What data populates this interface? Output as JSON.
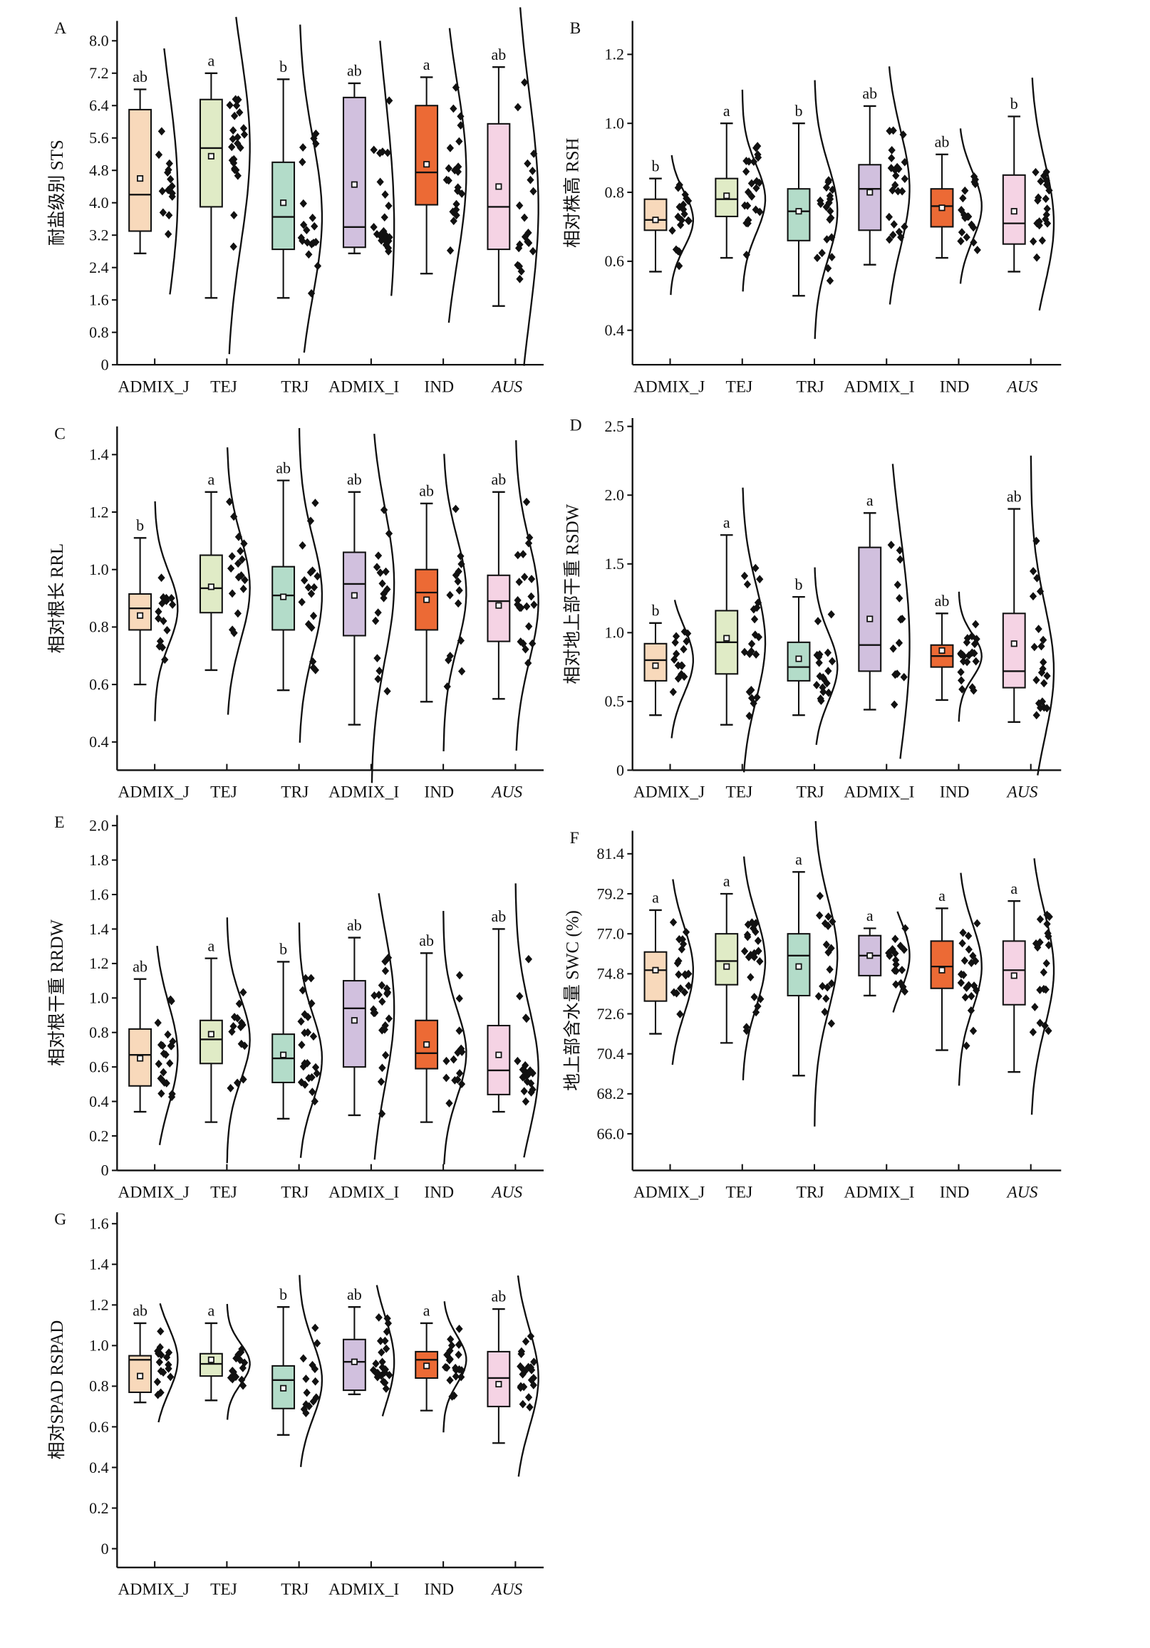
{
  "chart_data": [
    {
      "type": "box",
      "panel": "A",
      "ylabel": "耐盐级别 STS",
      "ylim": [
        0,
        8.4
      ],
      "yticks": [
        "0",
        "0.8",
        "1.6",
        "2.4",
        "3.2",
        "4.0",
        "4.8",
        "5.6",
        "6.4",
        "7.2",
        "8.0"
      ],
      "categories": [
        "ADMIX_J",
        "TEJ",
        "TRJ",
        "ADMIX_I",
        "IND",
        "AUS"
      ],
      "boxes": [
        {
          "min": 2.75,
          "q1": 3.3,
          "median": 4.2,
          "q3": 6.3,
          "max": 6.8,
          "mean": 4.6,
          "letter": "ab"
        },
        {
          "min": 1.65,
          "q1": 3.9,
          "median": 5.35,
          "q3": 6.55,
          "max": 7.2,
          "mean": 5.15,
          "letter": "a"
        },
        {
          "min": 1.65,
          "q1": 2.85,
          "median": 3.65,
          "q3": 5.0,
          "max": 7.05,
          "mean": 4.0,
          "letter": "b"
        },
        {
          "min": 2.75,
          "q1": 2.9,
          "median": 3.4,
          "q3": 6.6,
          "max": 6.95,
          "mean": 4.45,
          "letter": "ab"
        },
        {
          "min": 2.25,
          "q1": 3.95,
          "median": 4.75,
          "q3": 6.4,
          "max": 7.1,
          "mean": 4.95,
          "letter": "a"
        },
        {
          "min": 1.45,
          "q1": 2.85,
          "median": 3.9,
          "q3": 5.95,
          "max": 7.35,
          "mean": 4.4,
          "letter": "ab"
        }
      ]
    },
    {
      "type": "box",
      "panel": "B",
      "ylabel": "相对株高 RSH",
      "ylim": [
        0.3,
        1.3
      ],
      "yticks": [
        "0.4",
        "0.6",
        "0.8",
        "1.0",
        "1.2"
      ],
      "categories": [
        "ADMIX_J",
        "TEJ",
        "TRJ",
        "ADMIX_I",
        "IND",
        "AUS"
      ],
      "boxes": [
        {
          "min": 0.57,
          "q1": 0.69,
          "median": 0.72,
          "q3": 0.78,
          "max": 0.84,
          "mean": 0.72,
          "letter": "b"
        },
        {
          "min": 0.61,
          "q1": 0.73,
          "median": 0.78,
          "q3": 0.84,
          "max": 1.0,
          "mean": 0.79,
          "letter": "a"
        },
        {
          "min": 0.5,
          "q1": 0.66,
          "median": 0.745,
          "q3": 0.81,
          "max": 1.0,
          "mean": 0.745,
          "letter": "b"
        },
        {
          "min": 0.59,
          "q1": 0.69,
          "median": 0.81,
          "q3": 0.88,
          "max": 1.05,
          "mean": 0.8,
          "letter": "ab"
        },
        {
          "min": 0.61,
          "q1": 0.7,
          "median": 0.76,
          "q3": 0.81,
          "max": 0.91,
          "mean": 0.755,
          "letter": "ab"
        },
        {
          "min": 0.57,
          "q1": 0.65,
          "median": 0.71,
          "q3": 0.85,
          "max": 1.02,
          "mean": 0.745,
          "letter": "b"
        }
      ]
    },
    {
      "type": "box",
      "panel": "C",
      "ylabel": "相对根长 RRL",
      "ylim": [
        0.3,
        1.5
      ],
      "yticks": [
        "0.4",
        "0.6",
        "0.8",
        "1.0",
        "1.2",
        "1.4"
      ],
      "categories": [
        "ADMIX_J",
        "TEJ",
        "TRJ",
        "ADMIX_I",
        "IND",
        "AUS"
      ],
      "boxes": [
        {
          "min": 0.6,
          "q1": 0.79,
          "median": 0.865,
          "q3": 0.915,
          "max": 1.11,
          "mean": 0.84,
          "letter": "b"
        },
        {
          "min": 0.65,
          "q1": 0.85,
          "median": 0.935,
          "q3": 1.05,
          "max": 1.27,
          "mean": 0.94,
          "letter": "a"
        },
        {
          "min": 0.58,
          "q1": 0.79,
          "median": 0.91,
          "q3": 1.01,
          "max": 1.31,
          "mean": 0.905,
          "letter": "ab"
        },
        {
          "min": 0.46,
          "q1": 0.77,
          "median": 0.95,
          "q3": 1.06,
          "max": 1.27,
          "mean": 0.91,
          "letter": "ab"
        },
        {
          "min": 0.54,
          "q1": 0.79,
          "median": 0.92,
          "q3": 1.0,
          "max": 1.23,
          "mean": 0.895,
          "letter": "ab"
        },
        {
          "min": 0.55,
          "q1": 0.75,
          "median": 0.89,
          "q3": 0.98,
          "max": 1.27,
          "mean": 0.875,
          "letter": "ab"
        }
      ]
    },
    {
      "type": "box",
      "panel": "D",
      "ylabel": "相对地上部干重 RSDW",
      "ylim": [
        0,
        2.5
      ],
      "yticks": [
        "0",
        "0.5",
        "1.0",
        "1.5",
        "2.0",
        "2.5"
      ],
      "categories": [
        "ADMIX_J",
        "TEJ",
        "TRJ",
        "ADMIX_I",
        "IND",
        "AUS"
      ],
      "boxes": [
        {
          "min": 0.4,
          "q1": 0.65,
          "median": 0.8,
          "q3": 0.92,
          "max": 1.07,
          "mean": 0.76,
          "letter": "b"
        },
        {
          "min": 0.33,
          "q1": 0.7,
          "median": 0.93,
          "q3": 1.16,
          "max": 1.71,
          "mean": 0.96,
          "letter": "a"
        },
        {
          "min": 0.4,
          "q1": 0.65,
          "median": 0.75,
          "q3": 0.93,
          "max": 1.26,
          "mean": 0.81,
          "letter": "b"
        },
        {
          "min": 0.44,
          "q1": 0.72,
          "median": 0.91,
          "q3": 1.62,
          "max": 1.87,
          "mean": 1.1,
          "letter": "a"
        },
        {
          "min": 0.51,
          "q1": 0.75,
          "median": 0.83,
          "q3": 0.91,
          "max": 1.14,
          "mean": 0.87,
          "letter": "ab"
        },
        {
          "min": 0.35,
          "q1": 0.6,
          "median": 0.72,
          "q3": 1.14,
          "max": 1.9,
          "mean": 0.92,
          "letter": "ab"
        }
      ]
    },
    {
      "type": "box",
      "panel": "E",
      "ylabel": "相对根干重 RRDW",
      "ylim": [
        0,
        2.0
      ],
      "yticks": [
        "0",
        "0.2",
        "0.4",
        "0.6",
        "0.8",
        "1.0",
        "1.2",
        "1.4",
        "1.6",
        "1.8",
        "2.0"
      ],
      "categories": [
        "ADMIX_J",
        "TEJ",
        "TRJ",
        "ADMIX_I",
        "IND",
        "AUS"
      ],
      "boxes": [
        {
          "min": 0.34,
          "q1": 0.49,
          "median": 0.67,
          "q3": 0.82,
          "max": 1.11,
          "mean": 0.65,
          "letter": "ab"
        },
        {
          "min": 0.28,
          "q1": 0.62,
          "median": 0.76,
          "q3": 0.87,
          "max": 1.23,
          "mean": 0.79,
          "letter": "a"
        },
        {
          "min": 0.3,
          "q1": 0.51,
          "median": 0.65,
          "q3": 0.79,
          "max": 1.21,
          "mean": 0.67,
          "letter": "b"
        },
        {
          "min": 0.32,
          "q1": 0.6,
          "median": 0.94,
          "q3": 1.1,
          "max": 1.35,
          "mean": 0.87,
          "letter": "ab"
        },
        {
          "min": 0.28,
          "q1": 0.59,
          "median": 0.68,
          "q3": 0.87,
          "max": 1.26,
          "mean": 0.73,
          "letter": "ab"
        },
        {
          "min": 0.34,
          "q1": 0.44,
          "median": 0.58,
          "q3": 0.84,
          "max": 1.4,
          "mean": 0.67,
          "letter": "ab"
        }
      ]
    },
    {
      "type": "box",
      "panel": "F",
      "ylabel": "地上部含水量 SWC (%)",
      "ylim": [
        64.0,
        82.4
      ],
      "yticks": [
        "66.0",
        "68.2",
        "70.4",
        "72.6",
        "74.8",
        "77.0",
        "79.2",
        "81.4"
      ],
      "categories": [
        "ADMIX_J",
        "TEJ",
        "TRJ",
        "ADMIX_I",
        "IND",
        "AUS"
      ],
      "boxes": [
        {
          "min": 71.5,
          "q1": 73.3,
          "median": 75.0,
          "q3": 76.0,
          "max": 78.3,
          "mean": 75.0,
          "letter": "a"
        },
        {
          "min": 71.0,
          "q1": 74.2,
          "median": 75.5,
          "q3": 77.0,
          "max": 79.2,
          "mean": 75.2,
          "letter": "a"
        },
        {
          "min": 69.2,
          "q1": 73.6,
          "median": 75.8,
          "q3": 77.0,
          "max": 80.4,
          "mean": 75.2,
          "letter": "a"
        },
        {
          "min": 73.6,
          "q1": 74.7,
          "median": 75.8,
          "q3": 76.9,
          "max": 77.3,
          "mean": 75.8,
          "letter": "a"
        },
        {
          "min": 70.6,
          "q1": 74.0,
          "median": 75.2,
          "q3": 76.6,
          "max": 78.4,
          "mean": 75.0,
          "letter": "a"
        },
        {
          "min": 69.4,
          "q1": 73.1,
          "median": 75.0,
          "q3": 76.6,
          "max": 78.8,
          "mean": 74.7,
          "letter": "a"
        }
      ]
    },
    {
      "type": "box",
      "panel": "G",
      "ylabel": "相对SPAD RSPAD",
      "ylim": [
        -0.1,
        1.66
      ],
      "yticks": [
        "0",
        "0.2",
        "0.4",
        "0.6",
        "0.8",
        "1.0",
        "1.2",
        "1.4",
        "1.6"
      ],
      "categories": [
        "ADMIX_J",
        "TEJ",
        "TRJ",
        "ADMIX_I",
        "IND",
        "AUS"
      ],
      "boxes": [
        {
          "min": 0.72,
          "q1": 0.77,
          "median": 0.93,
          "q3": 0.95,
          "max": 1.11,
          "mean": 0.85,
          "letter": "ab"
        },
        {
          "min": 0.73,
          "q1": 0.85,
          "median": 0.91,
          "q3": 0.96,
          "max": 1.11,
          "mean": 0.93,
          "letter": "a"
        },
        {
          "min": 0.56,
          "q1": 0.69,
          "median": 0.83,
          "q3": 0.9,
          "max": 1.19,
          "mean": 0.79,
          "letter": "b"
        },
        {
          "min": 0.76,
          "q1": 0.78,
          "median": 0.92,
          "q3": 1.03,
          "max": 1.19,
          "mean": 0.92,
          "letter": "ab"
        },
        {
          "min": 0.68,
          "q1": 0.84,
          "median": 0.93,
          "q3": 0.97,
          "max": 1.11,
          "mean": 0.9,
          "letter": "a"
        },
        {
          "min": 0.52,
          "q1": 0.7,
          "median": 0.84,
          "q3": 0.97,
          "max": 1.18,
          "mean": 0.81,
          "letter": "ab"
        }
      ]
    }
  ],
  "colors": [
    "#f8d9bb",
    "#e0ebc6",
    "#b3dcc9",
    "#d1c0de",
    "#ec6a35",
    "#f5d3e4"
  ],
  "italic_categories": [
    "AUS"
  ]
}
